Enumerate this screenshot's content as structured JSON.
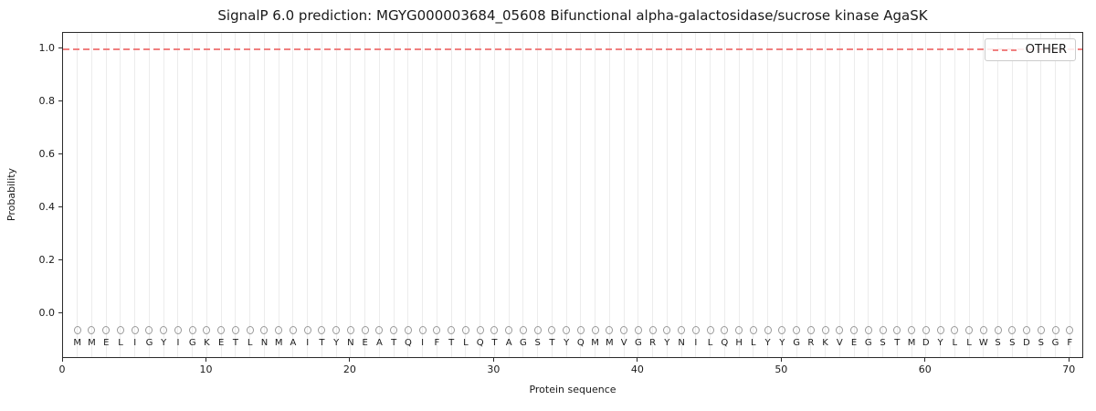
{
  "title": "SignalP 6.0 prediction: MGYG000003684_05608 Bifunctional alpha-galactosidase/sucrose kinase AgaSK",
  "xlabel": "Protein sequence",
  "ylabel": "Probability",
  "legend": {
    "position": "upper-right",
    "entries": [
      {
        "label": "OTHER",
        "color": "#f08080",
        "style": "dashed"
      }
    ]
  },
  "sequence": "MMELIGYIGKETLNMAITYNEATQIFTLQTAGSTYQMMVGRYNILQHLYYGRKVEGSTMDYLLWSSDSGF",
  "colors": {
    "other_line": "#f08080",
    "grid": "#ececec",
    "marker": "#9a9a9a",
    "text": "#1a1a1a",
    "axis": "#2b2b2b",
    "legend_border": "#cccccc"
  },
  "chart_data": {
    "type": "line",
    "title": "SignalP 6.0 prediction: MGYG000003684_05608 Bifunctional alpha-galactosidase/sucrose kinase AgaSK",
    "xlabel": "Protein sequence",
    "ylabel": "Probability",
    "x": [
      1,
      2,
      3,
      4,
      5,
      6,
      7,
      8,
      9,
      10,
      11,
      12,
      13,
      14,
      15,
      16,
      17,
      18,
      19,
      20,
      21,
      22,
      23,
      24,
      25,
      26,
      27,
      28,
      29,
      30,
      31,
      32,
      33,
      34,
      35,
      36,
      37,
      38,
      39,
      40,
      41,
      42,
      43,
      44,
      45,
      46,
      47,
      48,
      49,
      50,
      51,
      52,
      53,
      54,
      55,
      56,
      57,
      58,
      59,
      60,
      61,
      62,
      63,
      64,
      65,
      66,
      67,
      68,
      69,
      70
    ],
    "x_residues": [
      "M",
      "M",
      "E",
      "L",
      "I",
      "G",
      "Y",
      "I",
      "G",
      "K",
      "E",
      "T",
      "L",
      "N",
      "M",
      "A",
      "I",
      "T",
      "Y",
      "N",
      "E",
      "A",
      "T",
      "Q",
      "I",
      "F",
      "T",
      "L",
      "Q",
      "T",
      "A",
      "G",
      "S",
      "T",
      "Y",
      "Q",
      "M",
      "M",
      "V",
      "G",
      "R",
      "Y",
      "N",
      "I",
      "L",
      "Q",
      "H",
      "L",
      "Y",
      "Y",
      "G",
      "R",
      "K",
      "V",
      "E",
      "G",
      "S",
      "T",
      "M",
      "D",
      "Y",
      "L",
      "L",
      "W",
      "S",
      "S",
      "D",
      "S",
      "G",
      "F"
    ],
    "series": [
      {
        "name": "OTHER",
        "style": "dashed",
        "color": "#f08080",
        "values": [
          1.0,
          1.0,
          1.0,
          1.0,
          1.0,
          1.0,
          1.0,
          1.0,
          1.0,
          1.0,
          1.0,
          1.0,
          1.0,
          1.0,
          1.0,
          1.0,
          1.0,
          1.0,
          1.0,
          1.0,
          1.0,
          1.0,
          1.0,
          1.0,
          1.0,
          1.0,
          1.0,
          1.0,
          1.0,
          1.0,
          1.0,
          1.0,
          1.0,
          1.0,
          1.0,
          1.0,
          1.0,
          1.0,
          1.0,
          1.0,
          1.0,
          1.0,
          1.0,
          1.0,
          1.0,
          1.0,
          1.0,
          1.0,
          1.0,
          1.0,
          1.0,
          1.0,
          1.0,
          1.0,
          1.0,
          1.0,
          1.0,
          1.0,
          1.0,
          1.0,
          1.0,
          1.0,
          1.0,
          1.0,
          1.0,
          1.0,
          1.0,
          1.0,
          1.0,
          1.0
        ]
      }
    ],
    "markers": {
      "symbol": "circle",
      "y": -0.06,
      "letter_y": -0.11,
      "color": "#9a9a9a"
    },
    "xticks": [
      0,
      10,
      20,
      30,
      40,
      50,
      60,
      70
    ],
    "yticks": [
      "0.0",
      "0.2",
      "0.4",
      "0.6",
      "0.8",
      "1.0"
    ],
    "xlim": [
      0,
      71
    ],
    "ylim": [
      -0.169,
      1.062
    ],
    "grid": "vertical-per-residue",
    "legend_position": "upper right"
  }
}
